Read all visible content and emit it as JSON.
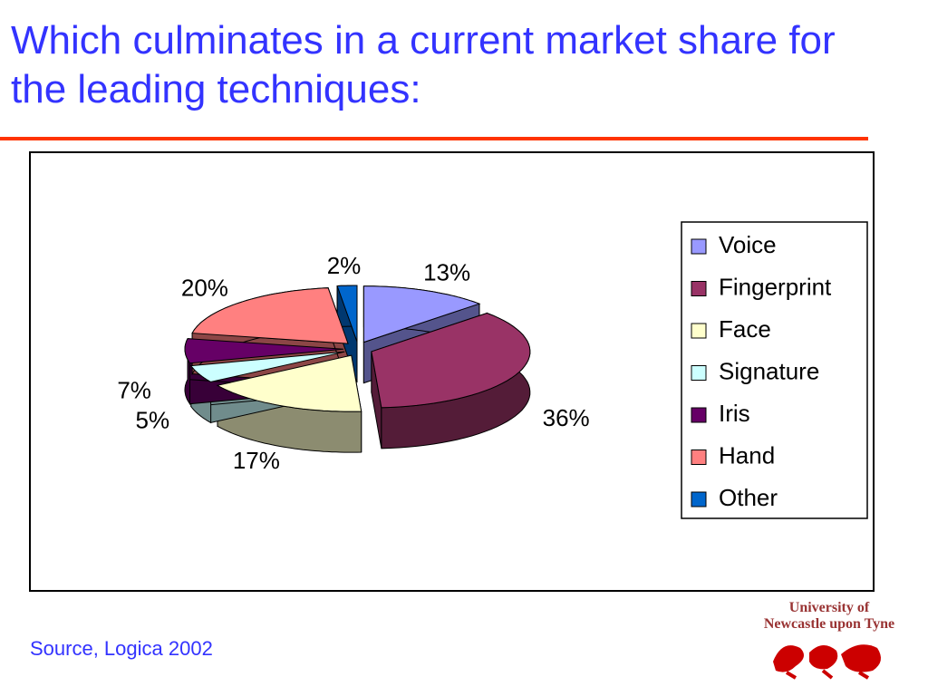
{
  "title": "Which culminates in a current market share for the leading techniques:",
  "chart_data": {
    "type": "pie",
    "categories": [
      "Voice",
      "Fingerprint",
      "Face",
      "Signature",
      "Iris",
      "Hand",
      "Other"
    ],
    "values": [
      13,
      36,
      17,
      5,
      7,
      20,
      2
    ],
    "value_labels": [
      "13%",
      "36%",
      "17%",
      "5%",
      "7%",
      "20%",
      "2%"
    ],
    "colors": [
      "#9999ff",
      "#993366",
      "#ffffcc",
      "#ccffff",
      "#660066",
      "#ff8080",
      "#0066cc"
    ],
    "legend": "right"
  },
  "source": "Source, Logica 2002",
  "logo": [
    "University of",
    "Newcastle upon Tyne"
  ]
}
